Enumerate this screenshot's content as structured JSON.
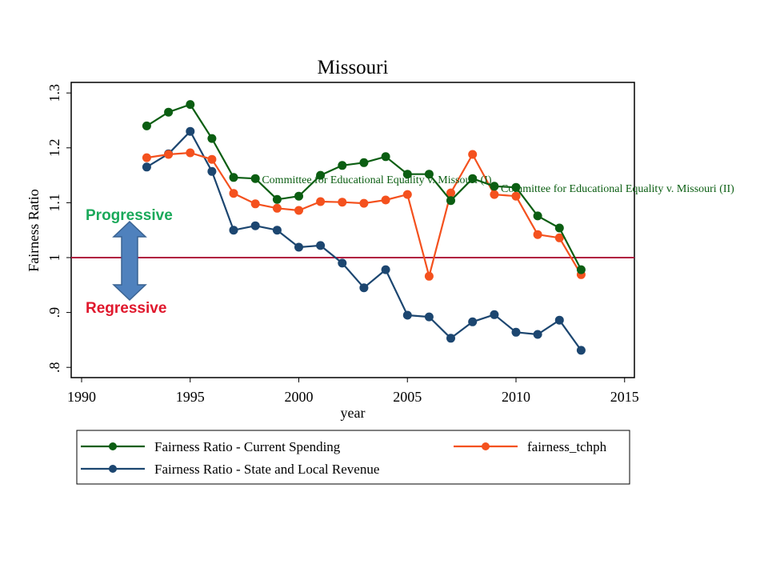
{
  "chart_data": {
    "type": "line",
    "title": "Missouri",
    "xlabel": "year",
    "ylabel": "Fairness Ratio",
    "xlim": [
      1989,
      2015.5
    ],
    "ylim": [
      0.78,
      1.32
    ],
    "xticks": [
      1990,
      1995,
      2000,
      2005,
      2010,
      2015
    ],
    "xtick_labels": [
      "1990",
      "1995",
      "2000",
      "2005",
      "2010",
      "2015"
    ],
    "yticks": [
      0.8,
      0.9,
      1.0,
      1.1,
      1.2,
      1.3
    ],
    "ytick_labels": [
      ".8",
      ".9",
      "1",
      "1.1",
      "1.2",
      "1.3"
    ],
    "grid": false,
    "reference_line": {
      "y": 1.0,
      "color": "#b0103f"
    },
    "x": [
      1993,
      1994,
      1995,
      1996,
      1997,
      1998,
      1999,
      2000,
      2001,
      2002,
      2003,
      2004,
      2005,
      2006,
      2007,
      2008,
      2009,
      2010,
      2011,
      2012,
      2013
    ],
    "series": [
      {
        "name": "Fairness Ratio - Current Spending",
        "color": "#0b5e12",
        "values": [
          1.24,
          1.265,
          1.279,
          1.217,
          1.146,
          1.144,
          1.106,
          1.112,
          1.15,
          1.168,
          1.173,
          1.184,
          1.152,
          1.152,
          1.104,
          1.144,
          1.13,
          1.128,
          1.076,
          1.054,
          0.978
        ]
      },
      {
        "name": "fairness_tchph",
        "color": "#f4511e",
        "values": [
          1.182,
          1.188,
          1.191,
          1.179,
          1.117,
          1.098,
          1.09,
          1.086,
          1.102,
          1.101,
          1.099,
          1.105,
          1.115,
          0.966,
          1.118,
          1.188,
          1.115,
          1.112,
          1.042,
          1.036,
          0.969
        ]
      },
      {
        "name": "Fairness Ratio - State and Local Revenue",
        "color": "#1c4670",
        "values": [
          1.165,
          1.189,
          1.23,
          1.157,
          1.05,
          1.058,
          1.05,
          1.019,
          1.022,
          0.99,
          0.945,
          0.978,
          0.895,
          0.892,
          0.853,
          0.883,
          0.896,
          0.864,
          0.86,
          0.886,
          0.831
        ]
      }
    ],
    "annotations": [
      {
        "text": "Committee for Educational Equality v. Missouri (I)",
        "x": 1998.3,
        "y": 1.143,
        "color": "#0b5e12"
      },
      {
        "text": "Committee for Educational Equality v. Missouri (II)",
        "x": 2009.3,
        "y": 1.127,
        "color": "#0b5e12"
      }
    ],
    "legend": {
      "placement": "bottom",
      "entries": [
        {
          "label": "Fairness Ratio - Current Spending",
          "color": "#0b5e12"
        },
        {
          "label": "fairness_tchph",
          "color": "#f4511e"
        },
        {
          "label": "Fairness Ratio - State and Local Revenue",
          "color": "#1c4670"
        }
      ]
    },
    "overlay": {
      "progressive_label": "Progressive",
      "progressive_color": "#1aa95a",
      "regressive_label": "Regressive",
      "regressive_color": "#e0182d",
      "arrow_color": "#4f81bd",
      "arrow_border": "#3a6392"
    }
  }
}
